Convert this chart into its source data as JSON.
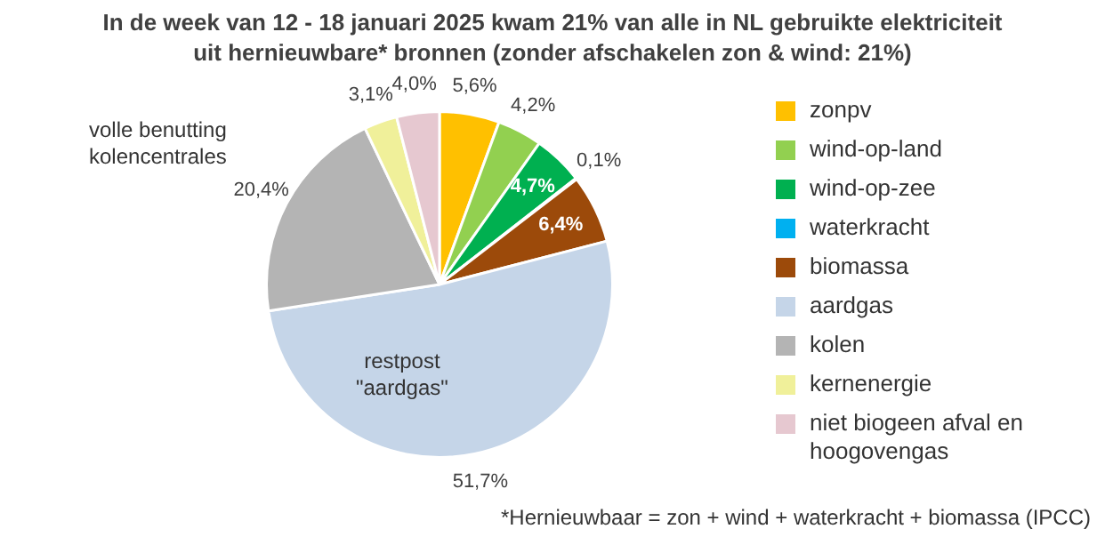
{
  "chart_data": {
    "type": "pie",
    "title": "In de week van 12 - 18 januari 2025 kwam 21% van alle in NL gebruikte elektriciteit\nuit hernieuwbare* bronnen  (zonder afschakelen zon & wind: 21%)",
    "categories": [
      "zonpv",
      "wind-op-land",
      "wind-op-zee",
      "waterkracht",
      "biomassa",
      "aardgas",
      "kolen",
      "kernenergie",
      "niet biogeen afval en hoogovengas"
    ],
    "values": [
      5.6,
      4.2,
      4.7,
      0.1,
      6.4,
      51.7,
      20.4,
      3.1,
      4.0
    ],
    "colors": [
      "#ffc000",
      "#92d050",
      "#00b050",
      "#00b0f0",
      "#9c4a0a",
      "#c5d5e8",
      "#b4b4b4",
      "#f0f09a",
      "#e6c8d0"
    ],
    "value_labels": [
      "5,6%",
      "4,2%",
      "4,7%",
      "0,1%",
      "6,4%",
      "51,7%",
      "20,4%",
      "3,1%",
      "4,0%"
    ],
    "legend": "right",
    "annotations": [
      "volle benutting\nkolencentrales",
      "restpost\n\"aardgas\"",
      "*Hernieuwbaar = zon + wind + waterkracht + biomassa (IPCC)"
    ]
  }
}
